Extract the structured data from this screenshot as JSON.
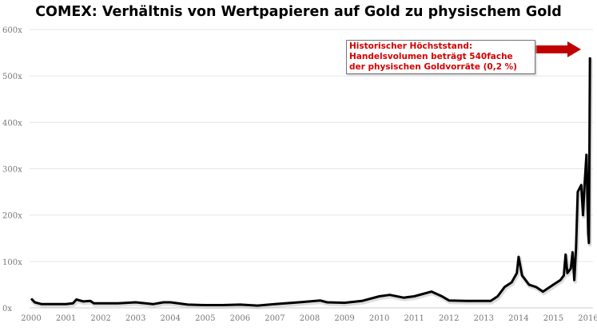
{
  "chart_data": {
    "type": "line",
    "title": "COMEX: Verhältnis von Wertpapieren auf Gold zu physischem Gold",
    "xlabel": "",
    "ylabel": "",
    "xlim": [
      2000,
      2016
    ],
    "ylim": [
      0,
      600
    ],
    "grid": true,
    "x_ticks": [
      "2000",
      "2001",
      "2002",
      "2003",
      "2004",
      "2005",
      "2006",
      "2007",
      "2008",
      "2009",
      "2010",
      "2011",
      "2012",
      "2013",
      "2014",
      "2015",
      "2016"
    ],
    "y_ticks": [
      "0x",
      "100x",
      "200x",
      "300x",
      "400x",
      "500x",
      "600x"
    ],
    "line_color": "#000000",
    "series": [
      {
        "x": [
          2000.0,
          2000.1,
          2000.3,
          2001.0,
          2001.2,
          2001.3,
          2001.5,
          2001.7,
          2001.8,
          2002.5,
          2003.0,
          2003.5,
          2003.8,
          2004.0,
          2004.5,
          2005.0,
          2005.5,
          2006.0,
          2006.5,
          2007.0,
          2007.5,
          2008.0,
          2008.3,
          2008.5,
          2009.0,
          2009.5,
          2010.0,
          2010.3,
          2010.7,
          2011.0,
          2011.5,
          2011.8,
          2012.0,
          2012.5,
          2013.0,
          2013.2,
          2013.4,
          2013.6,
          2013.8,
          2013.95,
          2014.0,
          2014.1,
          2014.3,
          2014.5,
          2014.7,
          2014.9,
          2015.0,
          2015.2,
          2015.3,
          2015.35,
          2015.4,
          2015.5,
          2015.55,
          2015.6,
          2015.65,
          2015.7,
          2015.8,
          2015.85,
          2015.9,
          2015.95,
          2016.0,
          2016.02,
          2016.05
        ],
        "y": [
          20,
          12,
          8,
          8,
          10,
          18,
          14,
          15,
          10,
          10,
          12,
          8,
          12,
          12,
          7,
          6,
          6,
          7,
          5,
          8,
          11,
          14,
          16,
          12,
          11,
          15,
          25,
          28,
          22,
          25,
          35,
          25,
          16,
          15,
          15,
          15,
          25,
          45,
          55,
          75,
          110,
          70,
          50,
          45,
          35,
          45,
          50,
          60,
          70,
          115,
          75,
          85,
          120,
          60,
          130,
          250,
          265,
          200,
          270,
          330,
          160,
          140,
          540
        ]
      }
    ],
    "annotation": {
      "lines": [
        "Historischer Höchststand:",
        "Handelsvolumen beträgt 540fache",
        "der physischen Goldvorräte (0,2 %)"
      ],
      "color": "#d40000",
      "arrow_color": "#c00000"
    }
  }
}
